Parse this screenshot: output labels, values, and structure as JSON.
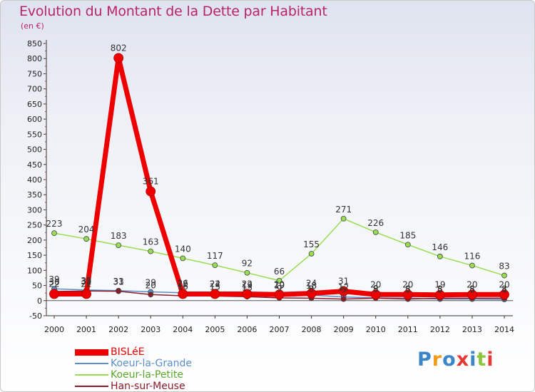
{
  "title": "Evolution du Montant de la Dette par Habitant",
  "subtitle": "(en €)",
  "logo_text": "Proxiti",
  "chart_data": {
    "type": "line",
    "x": [
      "2000",
      "2001",
      "2002",
      "2003",
      "2004",
      "2005",
      "2006",
      "2007",
      "2008",
      "2009",
      "2010",
      "2011",
      "2012",
      "2013",
      "2014"
    ],
    "yticks": [
      -50,
      0,
      50,
      100,
      150,
      200,
      250,
      300,
      350,
      400,
      450,
      500,
      550,
      600,
      650,
      700,
      750,
      800,
      850
    ],
    "ylim": [
      -50,
      850
    ],
    "grid": false,
    "legend_position": "bottom-left",
    "series": [
      {
        "name": "BISLéE",
        "color": "#ee0000",
        "values": [
          22,
          22,
          802,
          361,
          22,
          22,
          22,
          20,
          24,
          31,
          20,
          20,
          19,
          20,
          20
        ],
        "labels": [
          "22",
          "22",
          "802",
          "361",
          "22",
          "22",
          "22",
          "20",
          "24",
          "31",
          "20",
          "20",
          "19",
          "20",
          "20"
        ]
      },
      {
        "name": "Koeur-la-Grande",
        "color": "#5a8fc8",
        "values": [
          39,
          35,
          33,
          29,
          26,
          24,
          19,
          19,
          18,
          12,
          9,
          8,
          5,
          5,
          4
        ],
        "labels": [
          "39",
          "35",
          "33",
          "29",
          "26",
          "24",
          "19",
          "19",
          "18",
          "12",
          "9",
          "8",
          "5",
          "5",
          "4"
        ]
      },
      {
        "name": "Koeur-la-Petite",
        "color": "#99dd55",
        "values": [
          223,
          204,
          183,
          163,
          140,
          117,
          92,
          66,
          155,
          271,
          226,
          185,
          146,
          116,
          83
        ],
        "labels": [
          "223",
          "204",
          "183",
          "163",
          "140",
          "117",
          "92",
          "66",
          "155",
          "271",
          "226",
          "185",
          "146",
          "116",
          "83"
        ]
      },
      {
        "name": "Han-sur-Meuse",
        "color": "#8b1a2a",
        "values": [
          30,
          32,
          31,
          20,
          16,
          15,
          13,
          9,
          8,
          5,
          8,
          5,
          8,
          8,
          8
        ],
        "labels": [
          "30",
          "32",
          "31",
          "20",
          "16",
          "15",
          "13",
          "9",
          "8",
          "5",
          "8",
          "5",
          "8",
          "8",
          "8"
        ]
      }
    ]
  }
}
